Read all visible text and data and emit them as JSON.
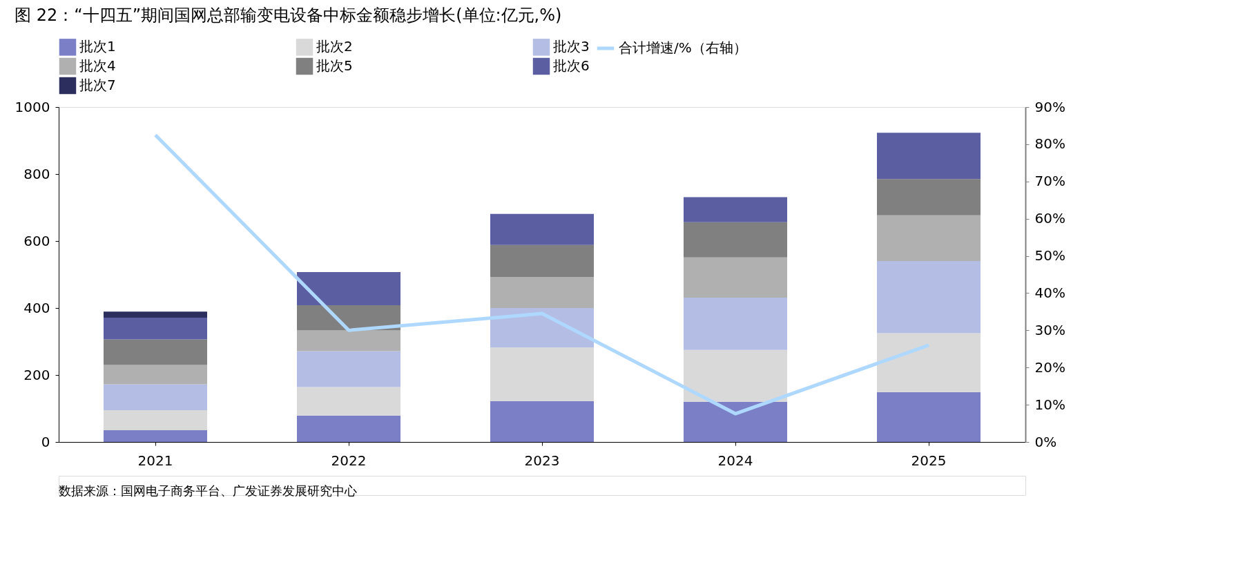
{
  "chart_data": {
    "type": "bar",
    "stacked": true,
    "title": "图 22：“十四五”期间国网总部输变电设备中标金额稳步增长(单位:亿元,%)",
    "annotations": [
      "数据来源：国网电子商务平台、广发证券发展研究中心"
    ],
    "categories": [
      "2021",
      "2022",
      "2023",
      "2024",
      "2025"
    ],
    "series": [
      {
        "name": "批次1",
        "color": "#7b80c6",
        "values": [
          35,
          79,
          122,
          120,
          149
        ]
      },
      {
        "name": "批次2",
        "color": "#d9d9d9",
        "values": [
          60,
          85,
          160,
          155,
          176
        ]
      },
      {
        "name": "批次3",
        "color": "#b4bde3",
        "values": [
          77,
          107,
          118,
          156,
          215
        ]
      },
      {
        "name": "批次4",
        "color": "#b0b0b0",
        "values": [
          58,
          62,
          93,
          120,
          137
        ]
      },
      {
        "name": "批次5",
        "color": "#808080",
        "values": [
          76,
          75,
          95,
          105,
          108
        ]
      },
      {
        "name": "批次6",
        "color": "#5b5ea0",
        "values": [
          65,
          99,
          93,
          75,
          138
        ]
      },
      {
        "name": "批次7",
        "color": "#2c2f5e",
        "values": [
          18,
          null,
          null,
          null,
          null
        ]
      },
      {
        "name": "合计增速/%（右轴）",
        "type": "line",
        "axis": "y2",
        "color": "#aed8ff",
        "values": [
          82.5,
          30,
          34.5,
          7.6,
          26
        ]
      }
    ],
    "ylim": [
      0,
      1000
    ],
    "yticks": [
      0,
      200,
      400,
      600,
      800,
      1000
    ],
    "y2lim": [
      0,
      90
    ],
    "y2ticks": [
      {
        "value": 0,
        "label": "0%"
      },
      {
        "value": 10,
        "label": "10%"
      },
      {
        "value": 20,
        "label": "20%"
      },
      {
        "value": 30,
        "label": "30%"
      },
      {
        "value": 40,
        "label": "40%"
      },
      {
        "value": 50,
        "label": "50%"
      },
      {
        "value": 60,
        "label": "60%"
      },
      {
        "value": 70,
        "label": "70%"
      },
      {
        "value": 80,
        "label": "80%"
      },
      {
        "value": 90,
        "label": "90%"
      }
    ],
    "grid": false,
    "legend": "top"
  }
}
